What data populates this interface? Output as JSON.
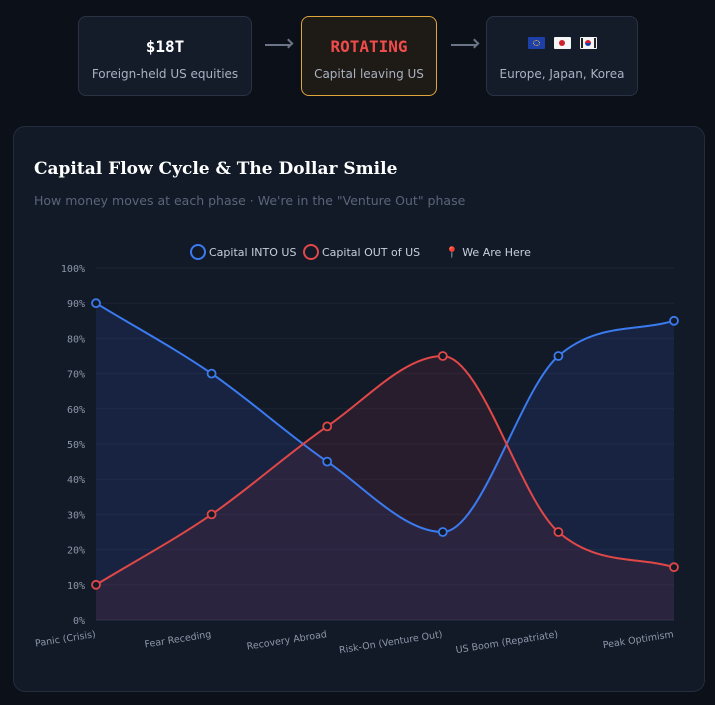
{
  "stats": [
    {
      "value": "$18T",
      "label": "Foreign-held US equities"
    },
    {
      "value": "ROTATING",
      "label": "Capital leaving US"
    },
    {
      "label": "Europe, Japan, Korea",
      "flags": [
        "eu-flag-icon",
        "japan-flag-icon",
        "korea-flag-icon"
      ]
    }
  ],
  "colors": {
    "into": "#3b7bf0",
    "out": "#e04848",
    "highlight": "#e0a53c",
    "rotating": "#f04c4c"
  },
  "chart_data": {
    "type": "line",
    "title": "Capital Flow Cycle & The Dollar Smile",
    "subtitle": "How money moves at each phase · We're in the \"Venture Out\" phase",
    "categories": [
      "Panic (Crisis)",
      "Fear Receding",
      "Recovery Abroad",
      "Risk-On (Venture Out)",
      "US Boom (Repatriate)",
      "Peak Optimism"
    ],
    "series": [
      {
        "name": "Capital INTO US",
        "values": [
          90,
          70,
          45,
          25,
          75,
          85
        ],
        "color": "#3b7bf0"
      },
      {
        "name": "Capital OUT of US",
        "values": [
          10,
          30,
          55,
          75,
          25,
          15
        ],
        "color": "#e04848"
      }
    ],
    "legend_extra": "📍 We Are Here",
    "ylim": [
      0,
      100
    ],
    "yticks": [
      "0%",
      "10%",
      "20%",
      "30%",
      "40%",
      "50%",
      "60%",
      "70%",
      "80%",
      "90%",
      "100%"
    ],
    "legend_position": "top-center",
    "grid": true
  }
}
